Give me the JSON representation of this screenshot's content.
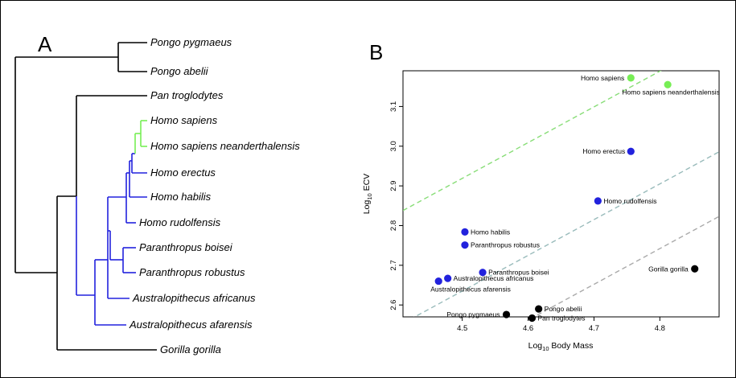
{
  "panels": {
    "a": "A",
    "b": "B"
  },
  "tree_data": {
    "type": "tree",
    "colors": {
      "default": "#000000",
      "homo_clade": "#2222dd",
      "sapiens_clade": "#77ee55"
    },
    "taxa": [
      "Pongo pygmaeus",
      "Pongo abelii",
      "Pan troglodytes",
      "Homo sapiens",
      "Homo sapiens neanderthalensis",
      "Homo erectus",
      "Homo habilis",
      "Homo rudolfensis",
      "Paranthropus boisei",
      "Paranthropus robustus",
      "Australopithecus africanus",
      "Australopithecus afarensis",
      "Gorilla gorilla"
    ]
  },
  "chart_data": {
    "type": "scatter",
    "xlabel": "Log10 Body Mass",
    "xlabel_parts": [
      "Log",
      "10",
      " Body Mass"
    ],
    "ylabel": "Log10 ECV",
    "ylabel_parts": [
      "Log",
      "10",
      " ECV"
    ],
    "xlim": [
      4.41,
      4.89
    ],
    "ylim": [
      2.57,
      3.19
    ],
    "xticks": [
      4.5,
      4.6,
      4.7,
      4.8
    ],
    "yticks": [
      2.6,
      2.7,
      2.8,
      2.9,
      3.0,
      3.1
    ],
    "xtick_labels": [
      "4.5",
      "4.6",
      "4.7",
      "4.8"
    ],
    "ytick_labels": [
      "2.6",
      "2.7",
      "2.8",
      "2.9",
      "3.0",
      "3.1"
    ],
    "grid": false,
    "colors": {
      "homo_sapiens_group": "#77ee55",
      "hominin": "#2222dd",
      "great_ape": "#000000",
      "sapiens_line": "#88dd77",
      "hominin_line": "#99bbbb",
      "ape_line": "#aaaaaa"
    },
    "points": [
      {
        "label": "Homo sapiens",
        "x": 4.756,
        "y": 3.172,
        "group": "homo_sapiens_group"
      },
      {
        "label": "Homo sapiens neanderthalensis",
        "x": 4.812,
        "y": 3.155,
        "group": "homo_sapiens_group"
      },
      {
        "label": "Homo erectus",
        "x": 4.756,
        "y": 2.987,
        "group": "hominin"
      },
      {
        "label": "Homo rudolfensis",
        "x": 4.706,
        "y": 2.862,
        "group": "hominin"
      },
      {
        "label": "Homo habilis",
        "x": 4.504,
        "y": 2.784,
        "group": "hominin"
      },
      {
        "label": "Paranthropus robustus",
        "x": 4.504,
        "y": 2.751,
        "group": "hominin"
      },
      {
        "label": "Paranthropus boisei",
        "x": 4.531,
        "y": 2.682,
        "group": "hominin"
      },
      {
        "label": "Australopithecus africanus",
        "x": 4.478,
        "y": 2.667,
        "group": "hominin"
      },
      {
        "label": "Australopithecus afarensis",
        "x": 4.464,
        "y": 2.66,
        "group": "hominin"
      },
      {
        "label": "Gorilla gorilla",
        "x": 4.853,
        "y": 2.691,
        "group": "great_ape"
      },
      {
        "label": "Pongo abelii",
        "x": 4.616,
        "y": 2.59,
        "group": "great_ape"
      },
      {
        "label": "Pongo pygmaeus",
        "x": 4.567,
        "y": 2.576,
        "group": "great_ape"
      },
      {
        "label": "Pan troglodytes",
        "x": 4.606,
        "y": 2.567,
        "group": "great_ape"
      }
    ],
    "fit_lines": [
      {
        "group": "homo_sapiens_group",
        "slope": 0.9,
        "intercept": -1.131
      },
      {
        "group": "hominin",
        "slope": 0.9,
        "intercept": -1.415
      },
      {
        "group": "great_ape",
        "slope": 0.9,
        "intercept": -1.578
      }
    ]
  }
}
